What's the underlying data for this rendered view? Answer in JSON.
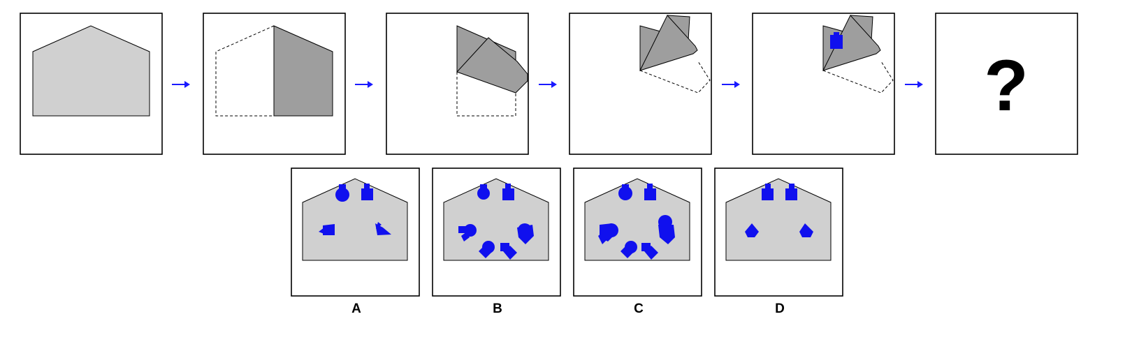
{
  "sequence": {
    "step_count": 6,
    "question_mark": "?"
  },
  "options": [
    {
      "label": "A"
    },
    {
      "label": "B"
    },
    {
      "label": "C"
    },
    {
      "label": "D"
    }
  ],
  "colors": {
    "paper": "#d0d0d0",
    "folded_paper": "#9e9e9e",
    "punch": "#1010ee",
    "arrow": "#1a1aff",
    "frame": "#000000"
  },
  "icons": {
    "arrow": "right-arrow-icon",
    "question": "question-mark-icon"
  }
}
